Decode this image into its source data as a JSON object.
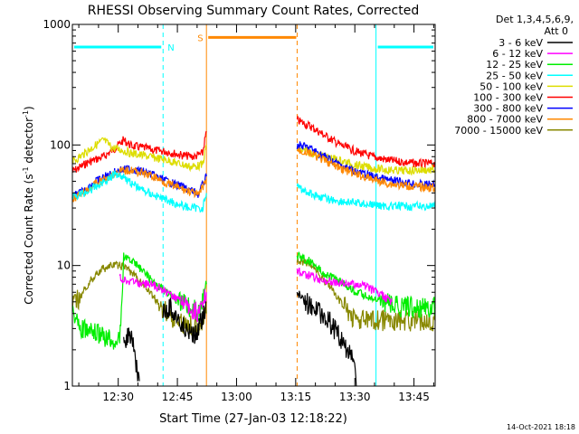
{
  "chart_data": {
    "type": "line",
    "title": "RHESSI Observing Summary Count Rates, Corrected",
    "xlabel": "Start Time (27-Jan-03 12:18:22)",
    "ylabel_main": "Corrected Count Rate (s",
    "ylabel_sup1": "-1",
    "ylabel_mid": " detector",
    "ylabel_sup2": "-1",
    "ylabel_end": ")",
    "yscale": "log",
    "ylim": [
      1,
      1000
    ],
    "xlim_minutes": [
      0,
      92
    ],
    "ytick_values": [
      1,
      10,
      100,
      1000
    ],
    "ytick_labels": [
      "1",
      "10",
      "100",
      "1000"
    ],
    "xtick_minutes": [
      11.63,
      26.63,
      41.63,
      56.63,
      71.63,
      86.63
    ],
    "xtick_labels": [
      "12:30",
      "12:45",
      "13:00",
      "13:15",
      "13:30",
      "13:45"
    ],
    "footer": "14-Oct-2021 18:18",
    "legend": {
      "header1": "Det 1,3,4,5,6,9,",
      "header2": "Att 0",
      "items": [
        {
          "label": "3 - 6 keV",
          "color": "#000000"
        },
        {
          "label": "6 - 12 keV",
          "color": "#ff00ff"
        },
        {
          "label": "12 - 25 keV",
          "color": "#00ee00"
        },
        {
          "label": "25 - 50 keV",
          "color": "#00ffff"
        },
        {
          "label": "50 - 100 keV",
          "color": "#dddd00"
        },
        {
          "label": "100 - 300 keV",
          "color": "#ff0000"
        },
        {
          "label": "300 - 800 keV",
          "color": "#0000ff"
        },
        {
          "label": "800 - 7000 keV",
          "color": "#ff8800"
        },
        {
          "label": "7000 - 15000 keV",
          "color": "#888800"
        }
      ]
    },
    "markers": {
      "night_label": "N",
      "saa_label": "S",
      "night_color": "#00ffff",
      "saa_color": "#ff8800",
      "night_bars_minutes": [
        [
          0,
          23
        ],
        [
          77,
          92
        ]
      ],
      "night_edges_minutes": [
        23,
        77,
        92
      ],
      "night_bar_level": 650,
      "saa_bar_minutes": [
        34,
        57
      ],
      "saa_edges_minutes": [
        34,
        57
      ],
      "saa_bar_level": 780
    },
    "series": [
      {
        "name": "100 - 300 keV",
        "color": "#ff0000",
        "segments": [
          [
            [
              0,
              60
            ],
            [
              4,
              72
            ],
            [
              8,
              80
            ],
            [
              11,
              95
            ],
            [
              13,
              110
            ],
            [
              15,
              98
            ],
            [
              18,
              95
            ],
            [
              21,
              90
            ],
            [
              24,
              88
            ],
            [
              28,
              82
            ],
            [
              31,
              80
            ],
            [
              33,
              85
            ],
            [
              34,
              130
            ]
          ],
          [
            [
              57,
              160
            ],
            [
              60,
              145
            ],
            [
              64,
              120
            ],
            [
              68,
              100
            ],
            [
              72,
              88
            ],
            [
              76,
              80
            ],
            [
              80,
              75
            ],
            [
              84,
              72
            ],
            [
              88,
              70
            ],
            [
              92,
              70
            ]
          ]
        ]
      },
      {
        "name": "50 - 100 keV",
        "color": "#dddd00",
        "segments": [
          [
            [
              0,
              72
            ],
            [
              3,
              85
            ],
            [
              6,
              100
            ],
            [
              8,
              110
            ],
            [
              10,
              95
            ],
            [
              13,
              90
            ],
            [
              15,
              85
            ],
            [
              18,
              82
            ],
            [
              21,
              78
            ],
            [
              24,
              75
            ],
            [
              27,
              70
            ],
            [
              30,
              66
            ],
            [
              33,
              68
            ],
            [
              34,
              100
            ]
          ],
          [
            [
              57,
              92
            ],
            [
              60,
              88
            ],
            [
              64,
              80
            ],
            [
              68,
              74
            ],
            [
              72,
              68
            ],
            [
              76,
              64
            ],
            [
              80,
              62
            ],
            [
              84,
              61
            ],
            [
              88,
              62
            ],
            [
              92,
              62
            ]
          ]
        ]
      },
      {
        "name": "300 - 800 keV",
        "color": "#0000ff",
        "segments": [
          [
            [
              0,
              37
            ],
            [
              3,
              42
            ],
            [
              6,
              50
            ],
            [
              9,
              56
            ],
            [
              12,
              62
            ],
            [
              15,
              63
            ],
            [
              18,
              60
            ],
            [
              21,
              55
            ],
            [
              24,
              50
            ],
            [
              27,
              46
            ],
            [
              30,
              42
            ],
            [
              32,
              39
            ],
            [
              34,
              55
            ]
          ],
          [
            [
              57,
              100
            ],
            [
              60,
              95
            ],
            [
              64,
              80
            ],
            [
              68,
              68
            ],
            [
              72,
              60
            ],
            [
              76,
              55
            ],
            [
              80,
              51
            ],
            [
              84,
              49
            ],
            [
              88,
              47
            ],
            [
              92,
              47
            ]
          ]
        ]
      },
      {
        "name": "800 - 7000 keV",
        "color": "#ff8800",
        "segments": [
          [
            [
              0,
              36
            ],
            [
              3,
              40
            ],
            [
              6,
              48
            ],
            [
              9,
              54
            ],
            [
              12,
              60
            ],
            [
              15,
              62
            ],
            [
              18,
              58
            ],
            [
              21,
              54
            ],
            [
              24,
              48
            ],
            [
              27,
              44
            ],
            [
              30,
              41
            ],
            [
              32,
              38
            ],
            [
              34,
              52
            ]
          ],
          [
            [
              57,
              90
            ],
            [
              60,
              86
            ],
            [
              64,
              74
            ],
            [
              68,
              64
            ],
            [
              72,
              57
            ],
            [
              76,
              52
            ],
            [
              80,
              48
            ],
            [
              84,
              46
            ],
            [
              88,
              45
            ],
            [
              92,
              44
            ]
          ]
        ]
      },
      {
        "name": "25 - 50 keV",
        "color": "#00ffff",
        "segments": [
          [
            [
              0,
              37
            ],
            [
              3,
              40
            ],
            [
              6,
              45
            ],
            [
              9,
              52
            ],
            [
              11,
              58
            ],
            [
              13,
              55
            ],
            [
              15,
              48
            ],
            [
              18,
              42
            ],
            [
              21,
              38
            ],
            [
              24,
              35
            ],
            [
              27,
              32
            ],
            [
              30,
              30
            ],
            [
              33,
              30
            ],
            [
              34,
              40
            ]
          ],
          [
            [
              57,
              45
            ],
            [
              60,
              40
            ],
            [
              64,
              36
            ],
            [
              68,
              34
            ],
            [
              72,
              33
            ],
            [
              76,
              32
            ],
            [
              80,
              31
            ],
            [
              84,
              31
            ],
            [
              88,
              31
            ],
            [
              92,
              31
            ]
          ]
        ]
      },
      {
        "name": "7000 - 15000 keV",
        "color": "#888800",
        "segments": [
          [
            [
              0,
              4.5
            ],
            [
              2,
              5.5
            ],
            [
              4,
              7
            ],
            [
              6,
              8.5
            ],
            [
              8,
              9.5
            ],
            [
              10,
              10
            ],
            [
              12,
              10
            ],
            [
              14,
              9.5
            ],
            [
              16,
              8
            ],
            [
              18,
              7
            ],
            [
              20,
              5.8
            ],
            [
              22,
              4.8
            ],
            [
              24,
              4
            ],
            [
              26,
              3.6
            ],
            [
              28,
              3.3
            ],
            [
              30,
              3.2
            ],
            [
              32,
              3.2
            ],
            [
              34,
              4
            ]
          ],
          [
            [
              57,
              11
            ],
            [
              59,
              10.5
            ],
            [
              61,
              10
            ],
            [
              63,
              8
            ],
            [
              65,
              7
            ],
            [
              67,
              5.5
            ],
            [
              69,
              4.5
            ],
            [
              71,
              3.8
            ],
            [
              73,
              3.5
            ],
            [
              76,
              3.5
            ],
            [
              80,
              3.5
            ],
            [
              84,
              3.5
            ],
            [
              88,
              3.5
            ],
            [
              92,
              3.5
            ]
          ]
        ]
      },
      {
        "name": "12 - 25 keV",
        "color": "#00ee00",
        "segments": [
          [
            [
              0,
              4.5
            ],
            [
              2,
              3
            ],
            [
              12,
              2.3
            ],
            [
              13,
              12
            ],
            [
              15,
              11
            ],
            [
              18,
              9
            ],
            [
              21,
              7
            ],
            [
              24,
              6
            ],
            [
              27,
              5
            ],
            [
              30,
              4.5
            ],
            [
              32,
              4
            ],
            [
              34,
              7
            ]
          ],
          [
            [
              57,
              12
            ],
            [
              60,
              11
            ],
            [
              63,
              9
            ],
            [
              66,
              8
            ],
            [
              69,
              7
            ],
            [
              72,
              6
            ],
            [
              75,
              5.5
            ],
            [
              78,
              5
            ],
            [
              80,
              4.8
            ],
            [
              84,
              4.5
            ],
            [
              88,
              4.5
            ],
            [
              92,
              4.5
            ]
          ]
        ]
      },
      {
        "name": "6 - 12 keV",
        "color": "#ff00ff",
        "segments": [
          [
            [
              12,
              8
            ],
            [
              14,
              7.5
            ],
            [
              16,
              7.2
            ],
            [
              18,
              7
            ],
            [
              20,
              7
            ],
            [
              22,
              6.5
            ],
            [
              24,
              6
            ],
            [
              26,
              5.5
            ],
            [
              28,
              5
            ],
            [
              30,
              4.5
            ],
            [
              32,
              4
            ],
            [
              34,
              6
            ]
          ],
          [
            [
              57,
              9
            ],
            [
              59,
              8.5
            ],
            [
              61,
              8
            ],
            [
              63,
              7.5
            ],
            [
              65,
              7.5
            ],
            [
              67,
              7.2
            ],
            [
              69,
              7
            ],
            [
              71,
              7
            ],
            [
              73,
              7
            ],
            [
              75,
              6.5
            ],
            [
              77,
              6
            ],
            [
              79,
              5.5
            ],
            [
              81,
              5
            ]
          ]
        ]
      },
      {
        "name": "3 - 6 keV",
        "color": "#000000",
        "segments": [
          [
            [
              13,
              2.5
            ],
            [
              15,
              2.5
            ],
            [
              17,
              1.1
            ]
          ],
          [
            [
              23,
              4
            ],
            [
              25,
              4.5
            ],
            [
              27,
              3.5
            ],
            [
              29,
              2.8
            ],
            [
              31,
              2.6
            ],
            [
              33,
              3.5
            ],
            [
              34,
              5
            ]
          ],
          [
            [
              57,
              6
            ],
            [
              59,
              5
            ],
            [
              61,
              4.5
            ],
            [
              63,
              4
            ],
            [
              65,
              3.5
            ],
            [
              67,
              2.8
            ],
            [
              69,
              2.2
            ],
            [
              71,
              1.8
            ],
            [
              72,
              1
            ]
          ]
        ]
      }
    ]
  }
}
